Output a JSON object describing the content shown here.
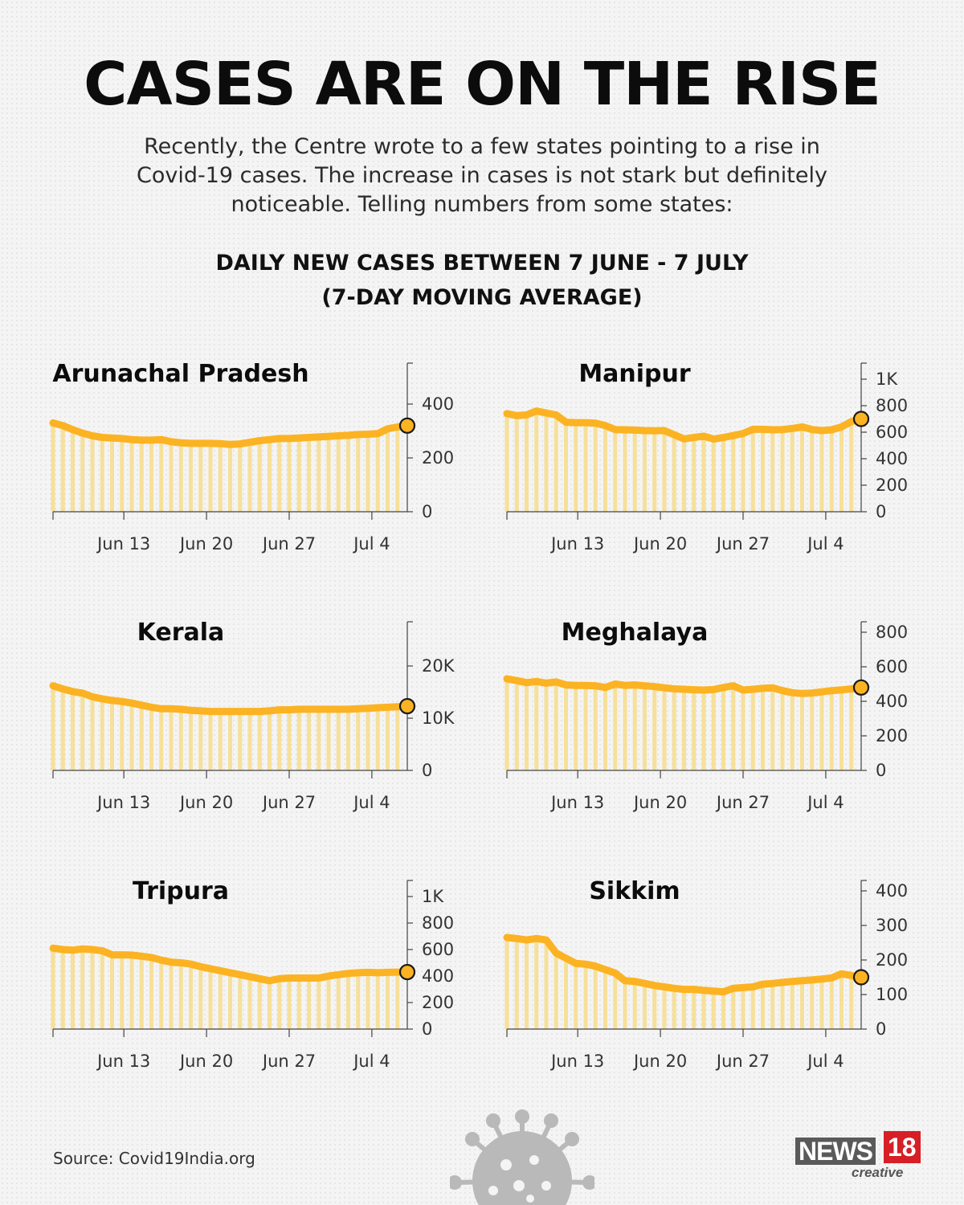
{
  "headline": "CASES ARE ON THE RISE",
  "intro": "Recently, the Centre wrote to a few states pointing to a rise in Covid-19 cases. The increase in cases is not stark but definitely noticeable. Telling numbers from some states:",
  "subtitle_line1": "DAILY NEW CASES BETWEEN 7 JUNE - 7 JULY",
  "subtitle_line2": "(7-DAY MOVING AVERAGE)",
  "source": "Source: Covid19India.org",
  "logo": {
    "brand": "NEWS",
    "number": "18",
    "sub": "creative"
  },
  "colors": {
    "line": "#fbb323",
    "bars": "#f7dc8a",
    "axis": "#444444",
    "text": "#111111"
  },
  "icons": [
    "virus-icon"
  ],
  "chart_data": [
    {
      "type": "line",
      "title": "Arunachal Pradesh",
      "x_ticks": [
        "Jun 13",
        "Jun 20",
        "Jun 27",
        "Jul 4"
      ],
      "y_ticks": [
        0,
        200,
        400
      ],
      "y_tick_labels": [
        "0",
        "200",
        "400"
      ],
      "ylim": [
        0,
        560
      ],
      "x_range": [
        "7 June",
        "7 July"
      ],
      "values": [
        330,
        320,
        305,
        292,
        282,
        276,
        274,
        272,
        268,
        266,
        266,
        268,
        260,
        256,
        254,
        254,
        254,
        253,
        250,
        252,
        258,
        264,
        268,
        272,
        272,
        274,
        276,
        278,
        280,
        282,
        284,
        287,
        288,
        290,
        308,
        315,
        320
      ]
    },
    {
      "type": "line",
      "title": "Manipur",
      "x_ticks": [
        "Jun 13",
        "Jun 20",
        "Jun 27",
        "Jul 4"
      ],
      "y_ticks": [
        0,
        200,
        400,
        600,
        800,
        1000
      ],
      "y_tick_labels": [
        "0",
        "200",
        "400",
        "600",
        "800",
        "1K"
      ],
      "ylim": [
        0,
        1120
      ],
      "x_range": [
        "7 June",
        "7 July"
      ],
      "values": [
        740,
        725,
        730,
        760,
        745,
        730,
        675,
        672,
        672,
        668,
        650,
        620,
        618,
        616,
        612,
        610,
        612,
        580,
        550,
        560,
        570,
        548,
        560,
        575,
        590,
        622,
        622,
        618,
        620,
        628,
        640,
        620,
        612,
        618,
        640,
        680,
        700
      ]
    },
    {
      "type": "line",
      "title": "Kerala",
      "x_ticks": [
        "Jun 13",
        "Jun 20",
        "Jun 27",
        "Jul 4"
      ],
      "y_ticks": [
        0,
        10000,
        20000
      ],
      "y_tick_labels": [
        "0",
        "10K",
        "20K"
      ],
      "ylim": [
        0,
        28000
      ],
      "x_range": [
        "7 June",
        "7 July"
      ],
      "values": [
        16200,
        15600,
        15100,
        14800,
        14100,
        13700,
        13400,
        13200,
        12900,
        12500,
        12100,
        11800,
        11800,
        11700,
        11500,
        11400,
        11300,
        11300,
        11300,
        11300,
        11300,
        11300,
        11400,
        11600,
        11600,
        11700,
        11700,
        11700,
        11700,
        11700,
        11700,
        11800,
        11900,
        12000,
        12100,
        12200,
        12300
      ]
    },
    {
      "type": "line",
      "title": "Meghalaya",
      "x_ticks": [
        "Jun 13",
        "Jun 20",
        "Jun 27",
        "Jul 4"
      ],
      "y_ticks": [
        0,
        200,
        400,
        600,
        800
      ],
      "y_tick_labels": [
        "0",
        "200",
        "400",
        "600",
        "800"
      ],
      "ylim": [
        0,
        840
      ],
      "x_range": [
        "7 June",
        "7 July"
      ],
      "values": [
        530,
        520,
        508,
        515,
        505,
        512,
        495,
        492,
        492,
        490,
        480,
        500,
        492,
        495,
        490,
        485,
        478,
        472,
        470,
        467,
        465,
        468,
        480,
        490,
        465,
        470,
        475,
        478,
        462,
        450,
        445,
        448,
        455,
        462,
        466,
        472,
        480
      ]
    },
    {
      "type": "line",
      "title": "Tripura",
      "x_ticks": [
        "Jun 13",
        "Jun 20",
        "Jun 27",
        "Jul 4"
      ],
      "y_ticks": [
        0,
        200,
        400,
        600,
        800,
        1000
      ],
      "y_tick_labels": [
        "0",
        "200",
        "400",
        "600",
        "800",
        "1K"
      ],
      "ylim": [
        0,
        1120
      ],
      "x_range": [
        "7 June",
        "7 July"
      ],
      "values": [
        610,
        600,
        595,
        605,
        600,
        590,
        560,
        560,
        558,
        550,
        540,
        520,
        505,
        500,
        490,
        470,
        455,
        440,
        425,
        410,
        395,
        380,
        365,
        380,
        385,
        385,
        385,
        385,
        400,
        410,
        420,
        425,
        428,
        425,
        428,
        430,
        430
      ]
    },
    {
      "type": "line",
      "title": "Sikkim",
      "x_ticks": [
        "Jun 13",
        "Jun 20",
        "Jun 27",
        "Jul 4"
      ],
      "y_ticks": [
        0,
        100,
        200,
        300,
        400
      ],
      "y_tick_labels": [
        "0",
        "100",
        "200",
        "300",
        "400"
      ],
      "ylim": [
        0,
        420
      ],
      "x_range": [
        "7 June",
        "7 July"
      ],
      "values": [
        265,
        262,
        258,
        262,
        258,
        220,
        205,
        190,
        188,
        182,
        172,
        162,
        140,
        138,
        132,
        126,
        122,
        118,
        115,
        115,
        112,
        110,
        108,
        118,
        120,
        122,
        130,
        132,
        135,
        138,
        140,
        142,
        145,
        148,
        160,
        155,
        150
      ]
    }
  ]
}
